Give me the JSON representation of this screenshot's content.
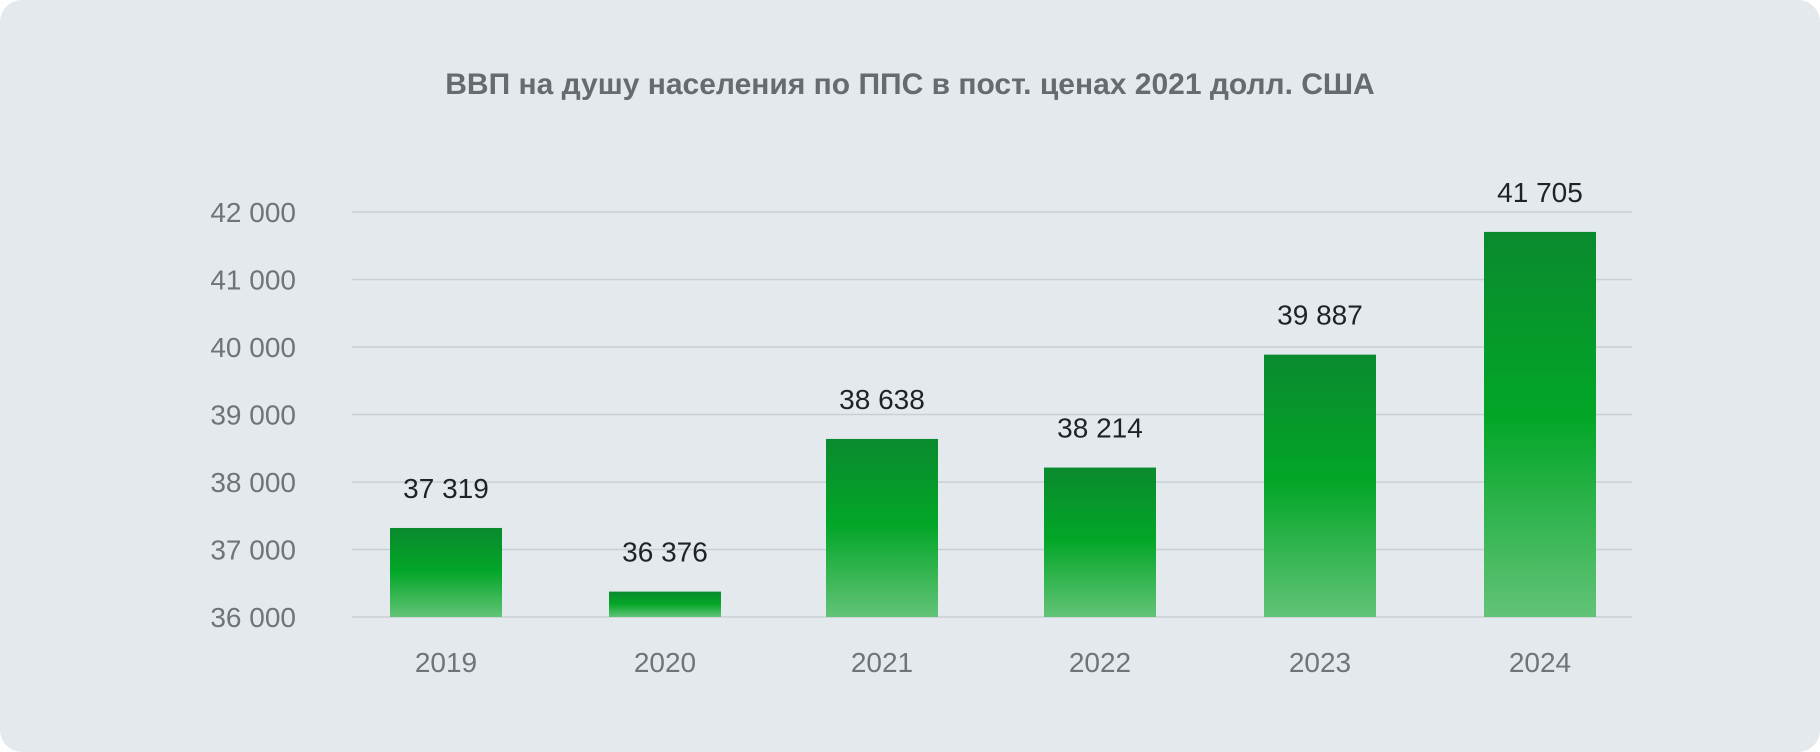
{
  "chart_data": {
    "type": "bar",
    "title": "ВВП на душу населения по ППС в пост. ценах 2021 долл. США",
    "xlabel": "",
    "ylabel": "",
    "categories": [
      "2019",
      "2020",
      "2021",
      "2022",
      "2023",
      "2024"
    ],
    "values": [
      37319,
      36376,
      38638,
      38214,
      39887,
      41705
    ],
    "value_labels": [
      "37 319",
      "36 376",
      "38 638",
      "38 214",
      "39 887",
      "41 705"
    ],
    "ylim": [
      36000,
      42000
    ],
    "yticks": [
      36000,
      37000,
      38000,
      39000,
      40000,
      41000,
      42000
    ],
    "ytick_labels": [
      "36 000",
      "37 000",
      "38 000",
      "39 000",
      "40 000",
      "41 000",
      "42 000"
    ],
    "grid": true,
    "legend": "none",
    "colors": {
      "bar_top": "#0a8a2e",
      "bar_mid": "#02a627",
      "bar_bottom": "#62c377",
      "grid": "#c9cfd4",
      "background": "#e3e9ed"
    }
  }
}
